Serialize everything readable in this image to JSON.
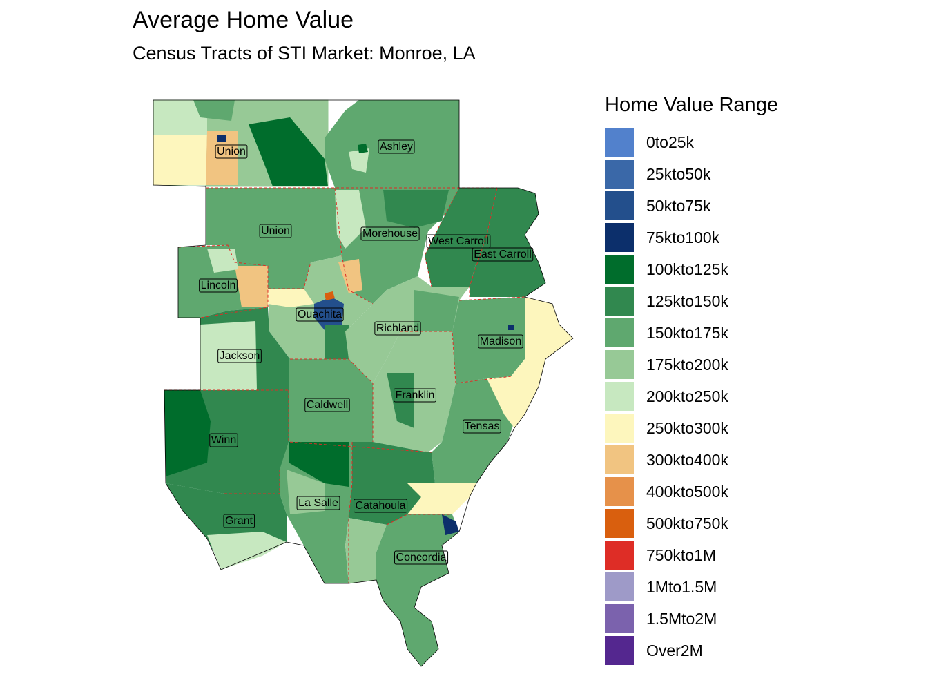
{
  "title": "Average Home Value",
  "subtitle": "Census Tracts of STI Market: Monroe, LA",
  "legend": {
    "title": "Home Value Range",
    "items": [
      {
        "label": "0to25k",
        "color": "#5281cc"
      },
      {
        "label": "25kto50k",
        "color": "#3a68a8"
      },
      {
        "label": "50kto75k",
        "color": "#234f8c"
      },
      {
        "label": "75kto100k",
        "color": "#0c2f6b"
      },
      {
        "label": "100kto125k",
        "color": "#006d2c"
      },
      {
        "label": "125kto150k",
        "color": "#31884f"
      },
      {
        "label": "150kto175k",
        "color": "#5fa86f"
      },
      {
        "label": "175kto200k",
        "color": "#97c996"
      },
      {
        "label": "200kto250k",
        "color": "#c7e8c0"
      },
      {
        "label": "250kto300k",
        "color": "#fdf6bd"
      },
      {
        "label": "300kto400k",
        "color": "#f1c481"
      },
      {
        "label": "400kto500k",
        "color": "#e6914a"
      },
      {
        "label": "500kto750k",
        "color": "#d95f0e"
      },
      {
        "label": "750kto1M",
        "color": "#de2d26"
      },
      {
        "label": "1Mto1.5M",
        "color": "#9e9ac8"
      },
      {
        "label": "1.5Mto2M",
        "color": "#7b62ad"
      },
      {
        "label": "Over2M",
        "color": "#54278f"
      }
    ]
  },
  "counties": [
    {
      "name": "Union",
      "label": "Union"
    },
    {
      "name": "Ashley",
      "label": "Ashley"
    },
    {
      "name": "Union-LA",
      "label": "Union"
    },
    {
      "name": "Morehouse",
      "label": "Morehouse"
    },
    {
      "name": "West Carroll",
      "label": "West Carroll"
    },
    {
      "name": "East Carroll",
      "label": "East Carroll"
    },
    {
      "name": "Lincoln",
      "label": "Lincoln"
    },
    {
      "name": "Ouachita",
      "label": "Ouachita"
    },
    {
      "name": "Richland",
      "label": "Richland"
    },
    {
      "name": "Madison",
      "label": "Madison"
    },
    {
      "name": "Jackson",
      "label": "Jackson"
    },
    {
      "name": "Caldwell",
      "label": "Caldwell"
    },
    {
      "name": "Franklin",
      "label": "Franklin"
    },
    {
      "name": "Tensas",
      "label": "Tensas"
    },
    {
      "name": "Winn",
      "label": "Winn"
    },
    {
      "name": "La Salle",
      "label": "La Salle"
    },
    {
      "name": "Catahoula",
      "label": "Catahoula"
    },
    {
      "name": "Grant",
      "label": "Grant"
    },
    {
      "name": "Concordia",
      "label": "Concordia"
    }
  ]
}
